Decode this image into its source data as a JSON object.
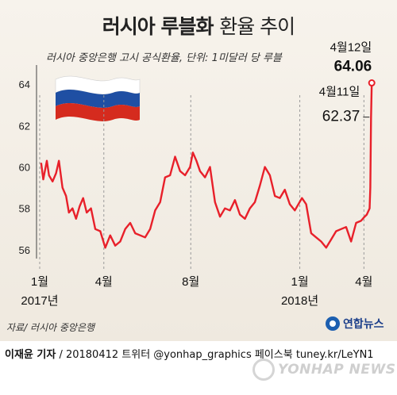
{
  "title": {
    "main": "러시아 루블화",
    "rest": "환율 추이"
  },
  "subtitle": "러시아 중앙은행 고시 공식환율, 단위: 1미달러 당 루블",
  "source": "자료/ 러시아 중앙은행",
  "logo_text": "연합뉴스",
  "credit": {
    "author": "이재윤 기자",
    "rest": " / 20180412  트위터 @yonhap_graphics  페이스북 tuney.kr/LeYN1"
  },
  "watermark": "YONHAP NEWS",
  "colors": {
    "line": "#e8202a",
    "grid": "#9a9a9a",
    "flag_white": "#ffffff",
    "flag_blue": "#1f4fa3",
    "flag_red": "#d52b1e"
  },
  "icons": {
    "flag": "russia-flag-icon",
    "logo": "yonhap-logo-icon",
    "watermark": "yonhap-news-watermark-icon"
  },
  "chart_data": {
    "type": "line",
    "title": "러시아 루블화 환율 추이",
    "xlabel": "",
    "ylabel": "",
    "ylim": [
      55.5,
      65
    ],
    "yticks": [
      56,
      58,
      60,
      62,
      64
    ],
    "xticks": [
      {
        "date": "2017-01",
        "label": "1월",
        "sublabel": "2017년"
      },
      {
        "date": "2017-04",
        "label": "4월",
        "sublabel": ""
      },
      {
        "date": "2017-08",
        "label": "8월",
        "sublabel": ""
      },
      {
        "date": "2018-01",
        "label": "1월",
        "sublabel": "2018년"
      },
      {
        "date": "2018-04",
        "label": "4월",
        "sublabel": ""
      }
    ],
    "grid": "vertical dashed at tick months",
    "annotations": [
      {
        "date": "2018-04-11",
        "label": "4월11일",
        "value": "62.37"
      },
      {
        "date": "2018-04-12",
        "label": "4월12일",
        "value": "64.06"
      }
    ],
    "series": [
      {
        "x": [
          "2017-01-03",
          "2017-01-06",
          "2017-01-11",
          "2017-01-14",
          "2017-01-19",
          "2017-01-24",
          "2017-01-28",
          "2017-02-02",
          "2017-02-07",
          "2017-02-11",
          "2017-02-16",
          "2017-02-21",
          "2017-02-26",
          "2017-03-03",
          "2017-03-08",
          "2017-03-14",
          "2017-03-20",
          "2017-03-27",
          "2017-04-03",
          "2017-04-10",
          "2017-04-17",
          "2017-04-24",
          "2017-05-01",
          "2017-05-08",
          "2017-05-15",
          "2017-05-22",
          "2017-05-29",
          "2017-06-05",
          "2017-06-12",
          "2017-06-19",
          "2017-06-26",
          "2017-07-03",
          "2017-07-10",
          "2017-07-17",
          "2017-07-24",
          "2017-07-31",
          "2017-08-04",
          "2017-08-09",
          "2017-08-14",
          "2017-08-21",
          "2017-08-28",
          "2017-09-04",
          "2017-09-11",
          "2017-09-18",
          "2017-09-25",
          "2017-10-02",
          "2017-10-09",
          "2017-10-16",
          "2017-10-23",
          "2017-10-30",
          "2017-11-06",
          "2017-11-13",
          "2017-11-20",
          "2017-11-27",
          "2017-12-04",
          "2017-12-11",
          "2017-12-18",
          "2017-12-25",
          "2018-01-04",
          "2018-01-10",
          "2018-01-17",
          "2018-01-24",
          "2018-01-31",
          "2018-02-07",
          "2018-02-14",
          "2018-02-21",
          "2018-02-28",
          "2018-03-07",
          "2018-03-14",
          "2018-03-21",
          "2018-03-28",
          "2018-04-02",
          "2018-04-05",
          "2018-04-09",
          "2018-04-10",
          "2018-04-11",
          "2018-04-12"
        ],
        "y": [
          60.2,
          59.4,
          60.3,
          59.6,
          59.3,
          59.7,
          60.3,
          59.0,
          58.6,
          57.8,
          58.0,
          57.5,
          58.1,
          58.5,
          57.8,
          58.0,
          57.0,
          56.9,
          56.1,
          56.7,
          56.2,
          56.4,
          57.0,
          57.3,
          56.8,
          56.7,
          56.6,
          57.0,
          57.9,
          58.3,
          59.5,
          59.6,
          60.5,
          59.8,
          59.6,
          60.0,
          60.7,
          60.3,
          59.8,
          59.5,
          60.0,
          58.3,
          57.6,
          58.0,
          57.9,
          58.4,
          57.7,
          57.5,
          58.0,
          58.3,
          59.1,
          60.0,
          59.6,
          58.6,
          58.5,
          58.9,
          58.2,
          57.9,
          58.5,
          58.2,
          56.8,
          56.6,
          56.4,
          56.1,
          56.5,
          56.9,
          57.0,
          57.1,
          56.4,
          57.3,
          57.4,
          57.6,
          57.7,
          58.0,
          59.0,
          62.37,
          64.06
        ]
      }
    ]
  }
}
